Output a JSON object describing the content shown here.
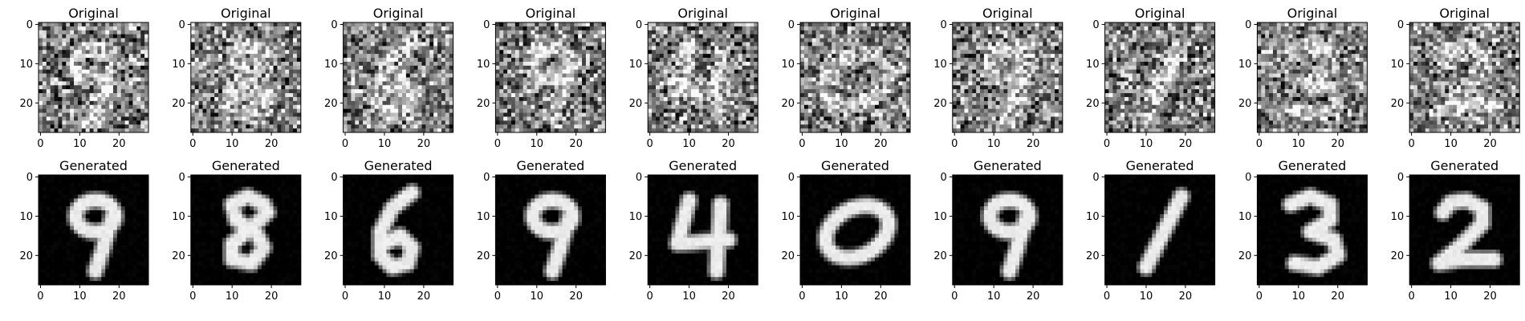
{
  "chart_data": {
    "type": "heatmap",
    "layout": "2 rows x 10 columns of 28x28 grayscale images",
    "rows": [
      {
        "name": "original",
        "title": "Original",
        "noise": true
      },
      {
        "name": "generated",
        "title": "Generated",
        "noise": false
      }
    ],
    "digits": [
      9,
      8,
      6,
      9,
      4,
      0,
      9,
      1,
      3,
      2
    ],
    "xticks": [
      0,
      10,
      20
    ],
    "yticks": [
      0,
      10,
      20
    ],
    "xlim": [
      -0.5,
      27.5
    ],
    "ylim": [
      27.5,
      -0.5
    ],
    "colormap": "gray",
    "image_size": 28
  }
}
